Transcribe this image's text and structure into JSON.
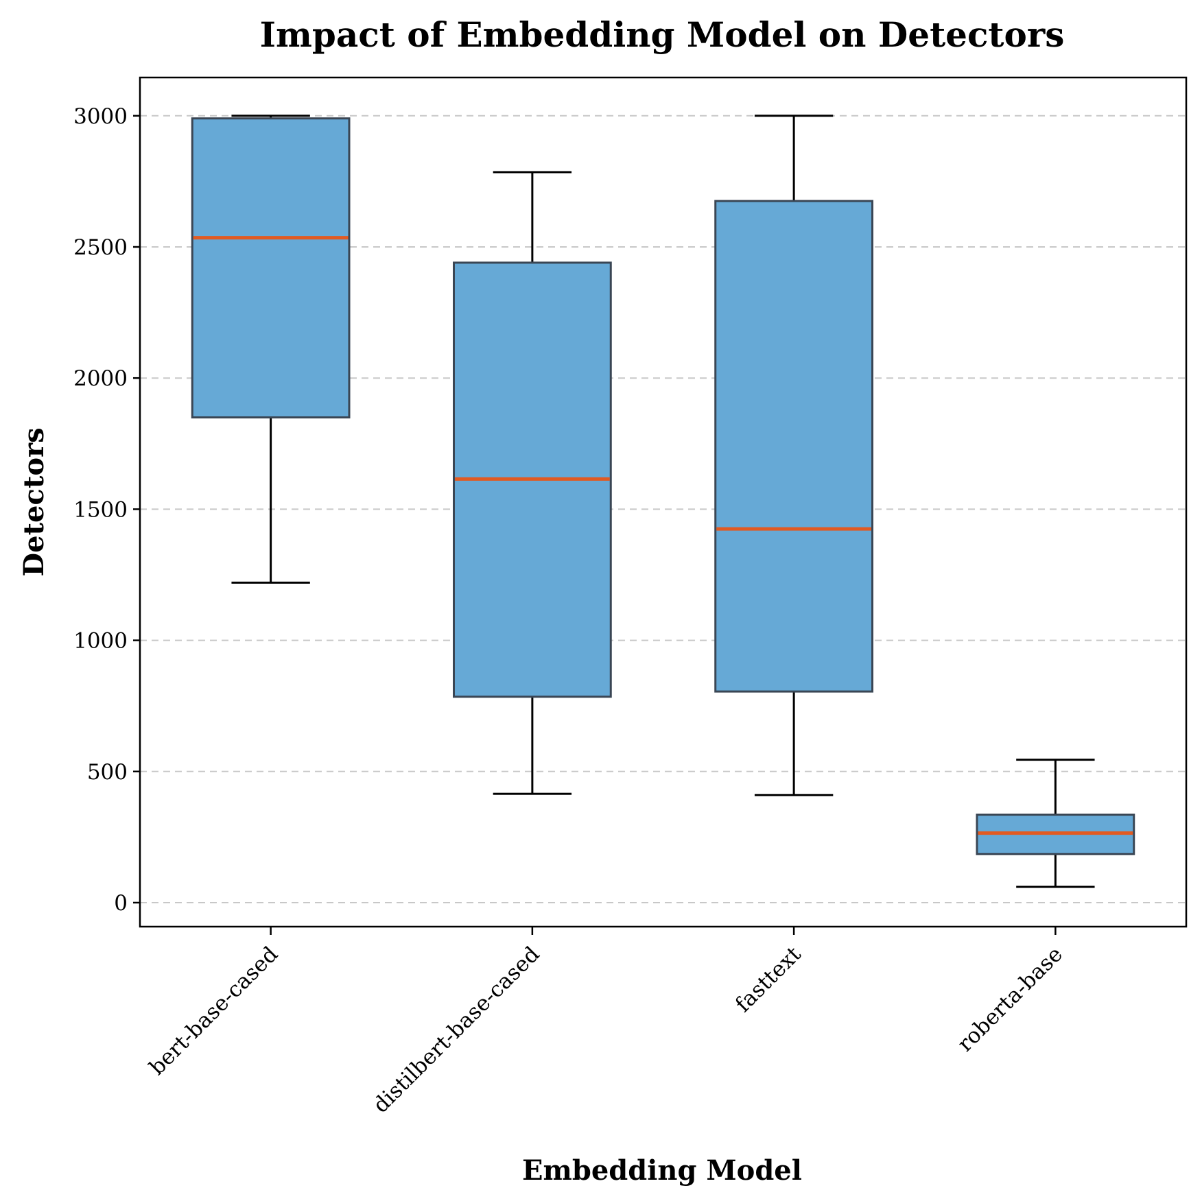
{
  "chart_data": {
    "type": "box",
    "title": "Impact of Embedding Model on Detectors",
    "xlabel": "Embedding Model",
    "ylabel": "Detectors",
    "ylim": [
      -180,
      3150
    ],
    "yticks": [
      0,
      500,
      1000,
      1500,
      2000,
      2500,
      3000
    ],
    "grid": "horizontal dashed",
    "box_color": "#66a9d6",
    "median_color": "#e15a22",
    "categories": [
      "bert-base-cased",
      "distilbert-base-cased",
      "fasttext",
      "roberta-base"
    ],
    "boxes": [
      {
        "category": "bert-base-cased",
        "whisker_low": 1220,
        "q1": 1850,
        "median": 2535,
        "q3": 2990,
        "whisker_high": 3000
      },
      {
        "category": "distilbert-base-cased",
        "whisker_low": 415,
        "q1": 785,
        "median": 1615,
        "q3": 2440,
        "whisker_high": 2785
      },
      {
        "category": "fasttext",
        "whisker_low": 410,
        "q1": 805,
        "median": 1425,
        "q3": 2675,
        "whisker_high": 3000
      },
      {
        "category": "roberta-base",
        "whisker_low": 60,
        "q1": 185,
        "median": 265,
        "q3": 335,
        "whisker_high": 545
      }
    ]
  }
}
